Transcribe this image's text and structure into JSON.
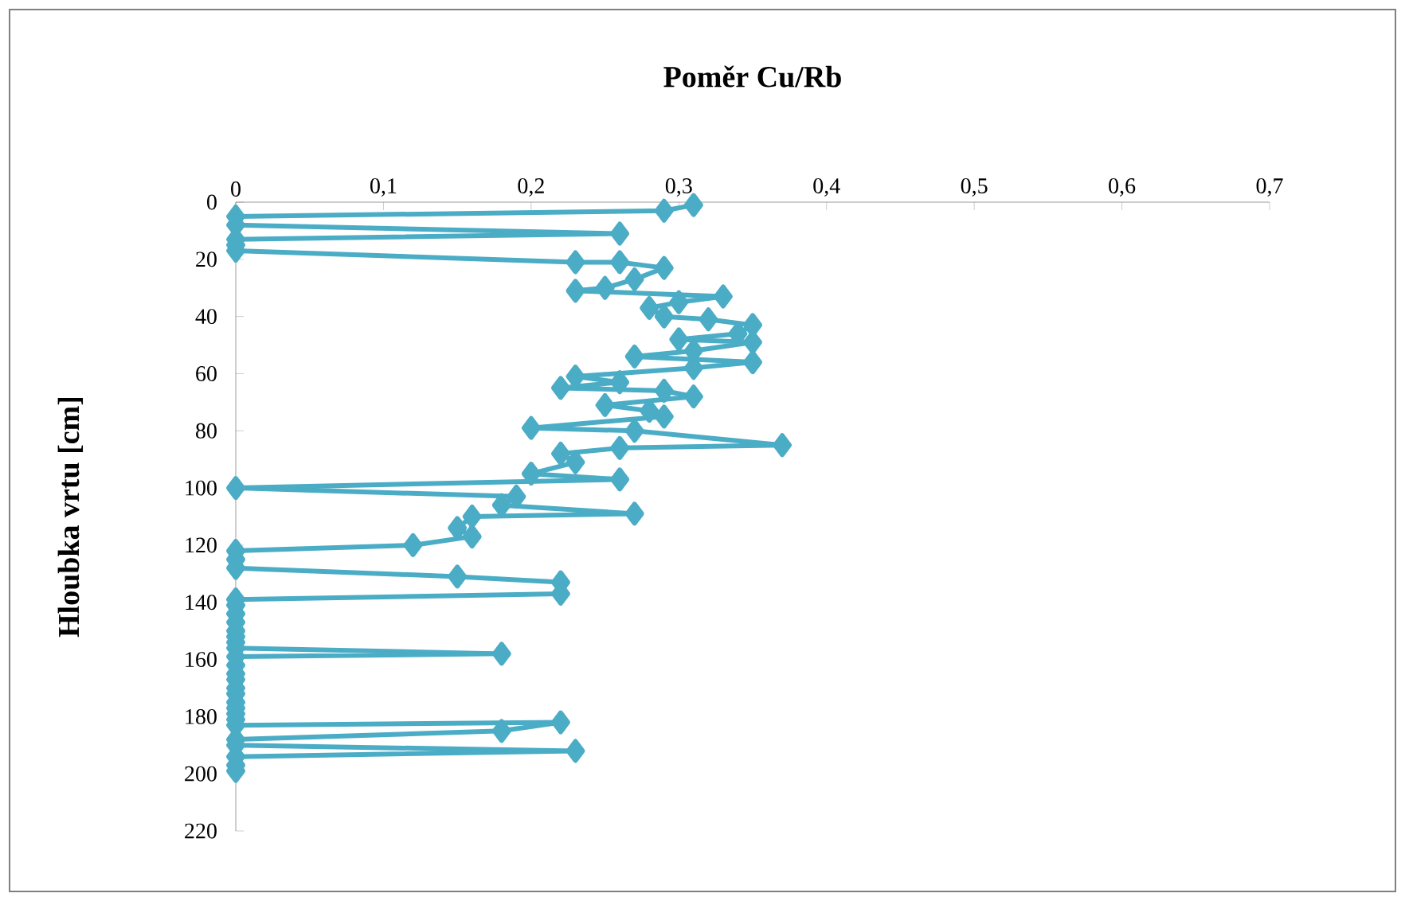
{
  "chart_data": {
    "type": "line",
    "xlabel": "Poměr Cu/Rb",
    "ylabel": "Hloubka vrtu [cm]",
    "xlim": [
      0,
      0.7
    ],
    "ylim": [
      220,
      0
    ],
    "xticks": [
      0,
      {
        "value": 0.1,
        "label": "0,1"
      },
      {
        "value": 0.2,
        "label": "0,2"
      },
      {
        "value": 0.3,
        "label": "0,3"
      },
      {
        "value": 0.4,
        "label": "0,4"
      },
      {
        "value": 0.5,
        "label": "0,5"
      },
      {
        "value": 0.6,
        "label": "0,6"
      },
      {
        "value": 0.7,
        "label": "0,7"
      }
    ],
    "yticks": [
      0,
      20,
      40,
      60,
      80,
      100,
      120,
      140,
      160,
      180,
      200,
      220
    ],
    "marker": "diamond",
    "line_style": "solid",
    "grid": false,
    "series": [
      {
        "color": "#4bacc6",
        "x": [
          0.31,
          0.29,
          0,
          0,
          0.26,
          0,
          0,
          0,
          0.23,
          0.26,
          0.29,
          0.27,
          0.25,
          0.23,
          0.33,
          0.3,
          0.28,
          0.29,
          0.32,
          0.35,
          0.34,
          0.3,
          0.35,
          0.31,
          0.27,
          0.35,
          0.31,
          0.23,
          0.26,
          0.22,
          0.29,
          0.31,
          0.25,
          0.28,
          0.29,
          0.2,
          0.27,
          0.37,
          0.26,
          0.22,
          0.23,
          0.2,
          0.26,
          0,
          0.19,
          0.18,
          0.27,
          0.16,
          0.15,
          0.16,
          0.12,
          0,
          0,
          0,
          0.15,
          0.22,
          0.22,
          0,
          0,
          0,
          0,
          0,
          0,
          0,
          0,
          0.18,
          0,
          0,
          0,
          0,
          0,
          0,
          0,
          0,
          0,
          0,
          0,
          0.22,
          0.18,
          0,
          0,
          0.23,
          0,
          0,
          0
        ],
        "values": [
          1,
          3,
          5,
          8,
          11,
          13,
          15,
          17,
          21,
          21,
          23,
          27,
          30,
          31,
          33,
          35,
          37,
          40,
          41,
          43,
          46,
          48,
          49,
          52,
          54,
          56,
          58,
          61,
          63,
          65,
          66,
          68,
          71,
          73,
          75,
          79,
          80,
          85,
          86,
          88,
          91,
          95,
          97,
          100,
          103,
          106,
          109,
          110,
          114,
          117,
          120,
          122,
          125,
          128,
          131,
          133,
          137,
          139,
          141,
          144,
          147,
          150,
          152,
          154,
          156,
          158,
          159,
          162,
          165,
          167,
          170,
          172,
          175,
          177,
          179,
          181,
          183,
          182,
          185,
          188,
          190,
          192,
          194,
          197,
          199
        ]
      }
    ]
  }
}
